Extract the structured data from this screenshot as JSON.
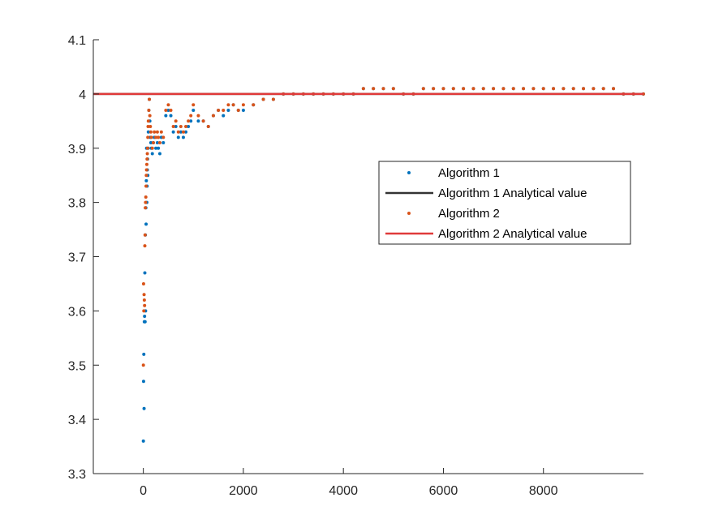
{
  "chart_data": {
    "type": "scatter",
    "title": "",
    "xlabel": "",
    "ylabel": "",
    "xlim": [
      -1000,
      10000
    ],
    "ylim": [
      3.3,
      4.1
    ],
    "xticks": [
      0,
      2000,
      4000,
      6000,
      8000
    ],
    "xtick_labels": [
      "0",
      "2000",
      "4000",
      "6000",
      "8000"
    ],
    "yticks": [
      3.3,
      3.4,
      3.5,
      3.6,
      3.7,
      3.8,
      3.9,
      4.0,
      4.1
    ],
    "ytick_labels": [
      "3.3",
      "3.4",
      "3.5",
      "3.6",
      "3.7",
      "3.8",
      "3.9",
      "4",
      "4.1"
    ],
    "grid": false,
    "legend_position": "right",
    "colors": {
      "algorithm1_points": "#0072BD",
      "algorithm2_points": "#D95319",
      "algorithm1_line": "#333333",
      "algorithm2_line": "#E03A3A",
      "axis": "#262626"
    },
    "series": [
      {
        "name": "Algorithm 1",
        "kind": "points",
        "x": [
          1,
          5,
          10,
          15,
          20,
          25,
          30,
          35,
          40,
          45,
          50,
          55,
          60,
          65,
          70,
          75,
          80,
          85,
          90,
          95,
          100,
          110,
          120,
          130,
          140,
          150,
          160,
          180,
          200,
          220,
          250,
          280,
          300,
          330,
          360,
          400,
          450,
          500,
          550,
          600,
          650,
          700,
          750,
          800,
          850,
          900,
          950,
          1000,
          1100,
          1200,
          1300,
          1400,
          1500,
          1600,
          1700,
          1800,
          1900,
          2000,
          2200,
          2400,
          2600,
          2800,
          3000,
          3200,
          3400,
          3600,
          3800,
          4000,
          4200,
          4400,
          4600,
          4800,
          5000,
          5200,
          5400,
          5600,
          5800,
          6000,
          6200,
          6400,
          6600,
          6800,
          7000,
          7200,
          7400,
          7600,
          7800,
          8000,
          8200,
          8400,
          8600,
          8800,
          9000,
          9200,
          9400,
          9600,
          9800,
          9999
        ],
        "y": [
          3.36,
          3.47,
          3.52,
          3.42,
          3.58,
          3.59,
          3.67,
          3.58,
          3.74,
          3.6,
          3.79,
          3.76,
          3.84,
          3.9,
          3.8,
          3.83,
          3.86,
          3.88,
          3.85,
          3.9,
          3.93,
          3.97,
          3.99,
          3.95,
          3.92,
          3.91,
          3.9,
          3.89,
          3.91,
          3.92,
          3.9,
          3.91,
          3.9,
          3.89,
          3.92,
          3.91,
          3.96,
          3.97,
          3.96,
          3.93,
          3.94,
          3.92,
          3.93,
          3.92,
          3.93,
          3.94,
          3.95,
          3.97,
          3.95,
          3.95,
          3.94,
          3.96,
          3.97,
          3.96,
          3.97,
          3.98,
          3.97,
          3.97,
          3.98,
          3.99,
          3.99,
          4.0,
          4.0,
          4.0,
          4.0,
          4.0,
          4.0,
          4.0,
          4.0,
          4.01,
          4.01,
          4.01,
          4.01,
          4.0,
          4.0,
          4.01,
          4.01,
          4.01,
          4.01,
          4.01,
          4.01,
          4.01,
          4.01,
          4.01,
          4.01,
          4.01,
          4.01,
          4.01,
          4.01,
          4.01,
          4.01,
          4.01,
          4.01,
          4.01,
          4.01,
          4.0,
          4.0,
          4.0
        ]
      },
      {
        "name": "Algorithm 1 Analytical value",
        "kind": "line",
        "x": [
          -1000,
          10000
        ],
        "y": [
          4.0,
          4.0
        ]
      },
      {
        "name": "Algorithm 2",
        "kind": "points",
        "x": [
          1,
          5,
          10,
          15,
          20,
          25,
          30,
          35,
          40,
          45,
          50,
          55,
          60,
          65,
          70,
          75,
          80,
          85,
          90,
          95,
          100,
          110,
          120,
          130,
          140,
          150,
          160,
          180,
          200,
          220,
          250,
          280,
          300,
          330,
          360,
          400,
          450,
          500,
          550,
          600,
          650,
          700,
          750,
          800,
          850,
          900,
          950,
          1000,
          1100,
          1200,
          1300,
          1400,
          1500,
          1600,
          1700,
          1800,
          1900,
          2000,
          2200,
          2400,
          2600,
          2800,
          3000,
          3200,
          3400,
          3600,
          3800,
          4000,
          4200,
          4400,
          4600,
          4800,
          5000,
          5200,
          5400,
          5600,
          5800,
          6000,
          6200,
          6400,
          6600,
          6800,
          7000,
          7200,
          7400,
          7600,
          7800,
          8000,
          8200,
          8400,
          8600,
          8800,
          9000,
          9200,
          9400,
          9600,
          9800,
          9999
        ],
        "y": [
          3.5,
          3.65,
          3.6,
          3.63,
          3.62,
          3.61,
          3.72,
          3.74,
          3.79,
          3.8,
          3.81,
          3.83,
          3.85,
          3.86,
          3.87,
          3.88,
          3.89,
          3.9,
          3.92,
          3.94,
          3.95,
          3.97,
          3.99,
          3.96,
          3.94,
          3.93,
          3.92,
          3.9,
          3.91,
          3.93,
          3.92,
          3.93,
          3.92,
          3.91,
          3.93,
          3.92,
          3.97,
          3.98,
          3.97,
          3.94,
          3.95,
          3.93,
          3.94,
          3.93,
          3.94,
          3.95,
          3.96,
          3.98,
          3.96,
          3.95,
          3.94,
          3.96,
          3.97,
          3.97,
          3.98,
          3.98,
          3.97,
          3.98,
          3.98,
          3.99,
          3.99,
          4.0,
          4.0,
          4.0,
          4.0,
          4.0,
          4.0,
          4.0,
          4.0,
          4.01,
          4.01,
          4.01,
          4.01,
          4.0,
          4.0,
          4.01,
          4.01,
          4.01,
          4.01,
          4.01,
          4.01,
          4.01,
          4.01,
          4.01,
          4.01,
          4.01,
          4.01,
          4.01,
          4.01,
          4.01,
          4.01,
          4.01,
          4.01,
          4.01,
          4.01,
          4.0,
          4.0,
          4.0
        ]
      },
      {
        "name": "Algorithm 2 Analytical value",
        "kind": "line",
        "x": [
          -1000,
          10000
        ],
        "y": [
          4.0,
          4.0
        ]
      }
    ]
  }
}
